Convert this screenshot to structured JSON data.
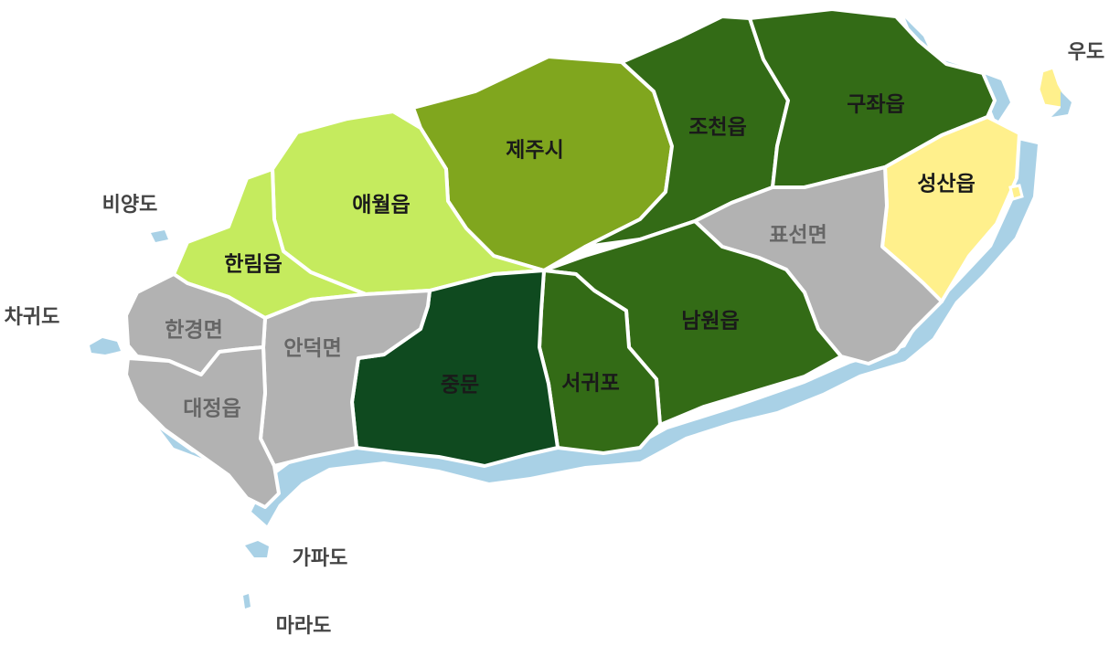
{
  "colors": {
    "dark_green": "#0f4a1f",
    "mid_green": "#336b16",
    "olive_green": "#80a61e",
    "light_green": "#c5eb5e",
    "gray": "#b2b2b2",
    "yellow": "#fff08c",
    "shore_blue": "#a9d1e6"
  },
  "regions": {
    "jeju_si": {
      "label": "제주시",
      "color": "olive_green"
    },
    "aewol": {
      "label": "애월읍",
      "color": "light_green"
    },
    "hallim": {
      "label": "한림읍",
      "color": "light_green"
    },
    "jocheon": {
      "label": "조천읍",
      "color": "mid_green"
    },
    "gujwa": {
      "label": "구좌읍",
      "color": "mid_green"
    },
    "seongsan": {
      "label": "성산읍",
      "color": "yellow"
    },
    "pyoseon": {
      "label": "표선면",
      "color": "gray"
    },
    "namwon": {
      "label": "남원읍",
      "color": "mid_green"
    },
    "seogwipo": {
      "label": "서귀포",
      "color": "mid_green"
    },
    "jungmun": {
      "label": "중문",
      "color": "dark_green"
    },
    "andeok": {
      "label": "안덕면",
      "color": "gray"
    },
    "hangyeong": {
      "label": "한경면",
      "color": "gray"
    },
    "daejeong": {
      "label": "대정읍",
      "color": "gray"
    }
  },
  "islands": {
    "udo": {
      "label": "우도"
    },
    "biyangdo": {
      "label": "비양도"
    },
    "chagwido": {
      "label": "차귀도"
    },
    "gapado": {
      "label": "가파도"
    },
    "marado": {
      "label": "마라도"
    }
  }
}
